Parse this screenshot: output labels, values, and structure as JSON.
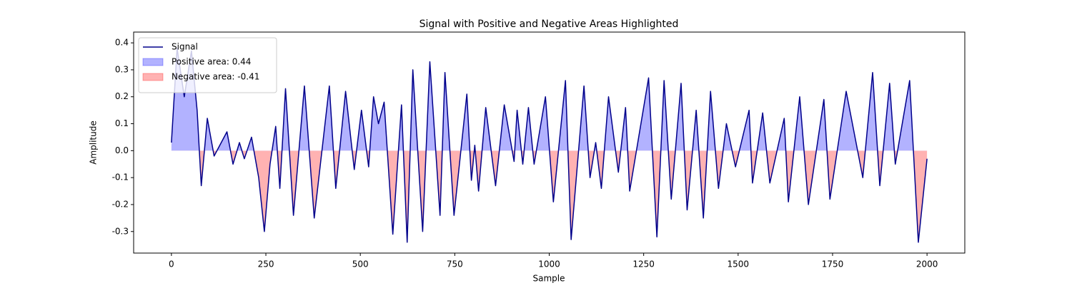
{
  "chart_data": {
    "type": "line",
    "title": "Signal with Positive and Negative Areas Highlighted",
    "xlabel": "Sample",
    "ylabel": "Amplitude",
    "x": [
      0,
      15,
      34,
      53,
      68,
      79,
      95,
      113,
      147,
      163,
      180,
      193,
      212,
      231,
      246,
      261,
      276,
      287,
      302,
      323,
      352,
      378,
      418,
      435,
      461,
      484,
      503,
      522,
      535,
      548,
      563,
      586,
      609,
      624,
      639,
      665,
      684,
      711,
      724,
      748,
      782,
      794,
      803,
      813,
      832,
      858,
      881,
      907,
      915,
      930,
      945,
      960,
      990,
      1011,
      1043,
      1058,
      1092,
      1108,
      1123,
      1138,
      1157,
      1183,
      1202,
      1213,
      1263,
      1285,
      1304,
      1323,
      1349,
      1365,
      1389,
      1408,
      1427,
      1448,
      1469,
      1493,
      1529,
      1538,
      1565,
      1584,
      1622,
      1633,
      1663,
      1686,
      1727,
      1743,
      1786,
      1830,
      1856,
      1875,
      1901,
      1916,
      1954,
      1977,
      2000
    ],
    "series": [
      {
        "name": "Signal",
        "color": "#00008b",
        "values": [
          0.03,
          0.38,
          0.2,
          0.37,
          0.15,
          -0.13,
          0.12,
          -0.02,
          0.07,
          -0.05,
          0.03,
          -0.03,
          0.05,
          -0.1,
          -0.3,
          -0.05,
          0.09,
          -0.14,
          0.23,
          -0.24,
          0.24,
          -0.25,
          0.24,
          -0.14,
          0.22,
          -0.07,
          0.15,
          -0.06,
          0.2,
          0.1,
          0.18,
          -0.31,
          0.17,
          -0.34,
          0.3,
          -0.3,
          0.33,
          -0.24,
          0.29,
          -0.24,
          0.21,
          -0.11,
          0.02,
          -0.15,
          0.16,
          -0.13,
          0.17,
          -0.04,
          0.15,
          -0.05,
          0.16,
          -0.05,
          0.2,
          -0.19,
          0.26,
          -0.33,
          0.24,
          -0.1,
          0.03,
          -0.14,
          0.2,
          -0.08,
          0.16,
          -0.15,
          0.27,
          -0.32,
          0.26,
          -0.18,
          0.25,
          -0.22,
          0.15,
          -0.25,
          0.22,
          -0.14,
          0.1,
          -0.06,
          0.15,
          -0.12,
          0.14,
          -0.12,
          0.12,
          -0.19,
          0.2,
          -0.2,
          0.19,
          -0.18,
          0.22,
          -0.1,
          0.29,
          -0.13,
          0.25,
          -0.05,
          0.26,
          -0.34,
          -0.03
        ]
      }
    ],
    "fills": [
      {
        "name": "Positive area: 0.44",
        "color": "#0000ff",
        "side": "positive"
      },
      {
        "name": "Negative area: -0.41",
        "color": "#ff0000",
        "side": "negative"
      }
    ],
    "xlim": [
      -100,
      2100
    ],
    "xticks": [
      0,
      250,
      500,
      750,
      1000,
      1250,
      1500,
      1750,
      2000
    ],
    "ylim": [
      -0.38,
      0.44
    ],
    "yticks": [
      -0.3,
      -0.2,
      -0.1,
      {
        "value": 0,
        "label": "0.0"
      },
      0.1,
      0.2,
      0.3,
      0.4
    ],
    "legend": "upper left"
  }
}
